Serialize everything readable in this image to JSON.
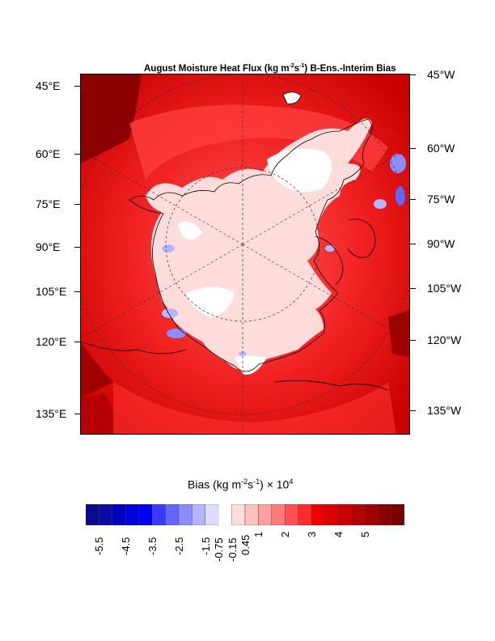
{
  "title": {
    "prefix": "August Moisture Heat Flux (kg m",
    "exp1": "-2",
    "mid": "s",
    "exp2": "-1",
    "suffix": ") B-Ens.-Interim Bias"
  },
  "map": {
    "projection": "polar stereographic (north)",
    "left_labels": [
      "45°E",
      "60°E",
      "75°E",
      "90°E",
      "105°E",
      "120°E",
      "135°E"
    ],
    "right_labels": [
      "45°W",
      "60°W",
      "75°W",
      "90°W",
      "105°W",
      "120°W",
      "135°W"
    ],
    "grid_meridian_spacing_deg": 60,
    "dominant_field": "positive bias (red) over land and open ocean, near-zero (pale) over the central Arctic basin, small negative (blue) patches along coasts and the Canadian Archipelago"
  },
  "colorbar": {
    "title_prefix": "Bias (kg m",
    "title_exp1": "-2",
    "title_mid": "s",
    "title_exp2": "-1",
    "title_suffix": ") × 10",
    "title_exp3": "4",
    "labels": [
      "-5.5",
      "-4.5",
      "-3.5",
      "-2.5",
      "-1.5",
      "-0.75",
      "-0.15",
      "0.45",
      "1",
      "2",
      "3",
      "4",
      "5"
    ],
    "colors": [
      "#0a0a8c",
      "#0a0aa5",
      "#0000c0",
      "#0000d8",
      "#0000f0",
      "#3a3aff",
      "#6464ff",
      "#8c8cff",
      "#b4b4ff",
      "#dcdcff",
      "#ffffff",
      "#ffdcdc",
      "#ffc0c0",
      "#ffa0a0",
      "#ff7a7a",
      "#ff5050",
      "#ff2a2a",
      "#f00000",
      "#dc0000",
      "#c80000",
      "#b40000",
      "#a00000",
      "#8c0000",
      "#780000"
    ]
  }
}
